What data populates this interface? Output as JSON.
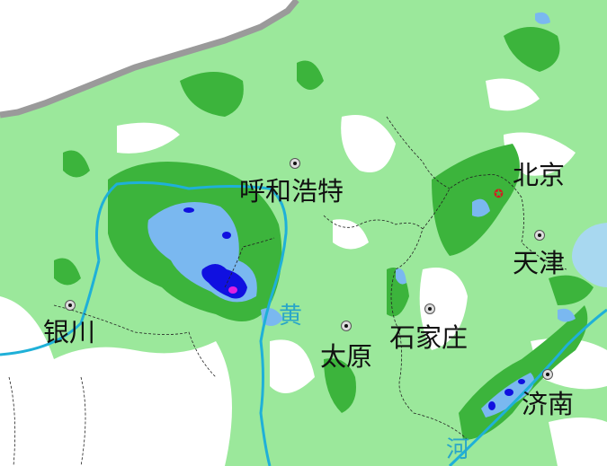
{
  "map": {
    "colors": {
      "background_land": "#9be89b",
      "no_rain": "#ffffff",
      "rain_moderate": "#3cb43c",
      "rain_heavy": "#7ab8f0",
      "rain_very_heavy": "#1010e0",
      "rain_extreme": "#e020e0",
      "river": "#1fb0d8",
      "sea": "#a8d8f0",
      "border_gray": "#9a9a9a"
    },
    "cities": [
      {
        "name": "呼和浩特",
        "marker": "city-dot-icon"
      },
      {
        "name": "北京",
        "marker": "capital-star-icon"
      },
      {
        "name": "天津",
        "marker": "city-dot-icon"
      },
      {
        "name": "银川",
        "marker": "city-dot-icon"
      },
      {
        "name": "太原",
        "marker": "city-dot-icon"
      },
      {
        "name": "石家庄",
        "marker": "city-dot-icon"
      },
      {
        "name": "济南",
        "marker": "city-dot-icon"
      }
    ],
    "river_labels": [
      "黄",
      "河"
    ]
  }
}
